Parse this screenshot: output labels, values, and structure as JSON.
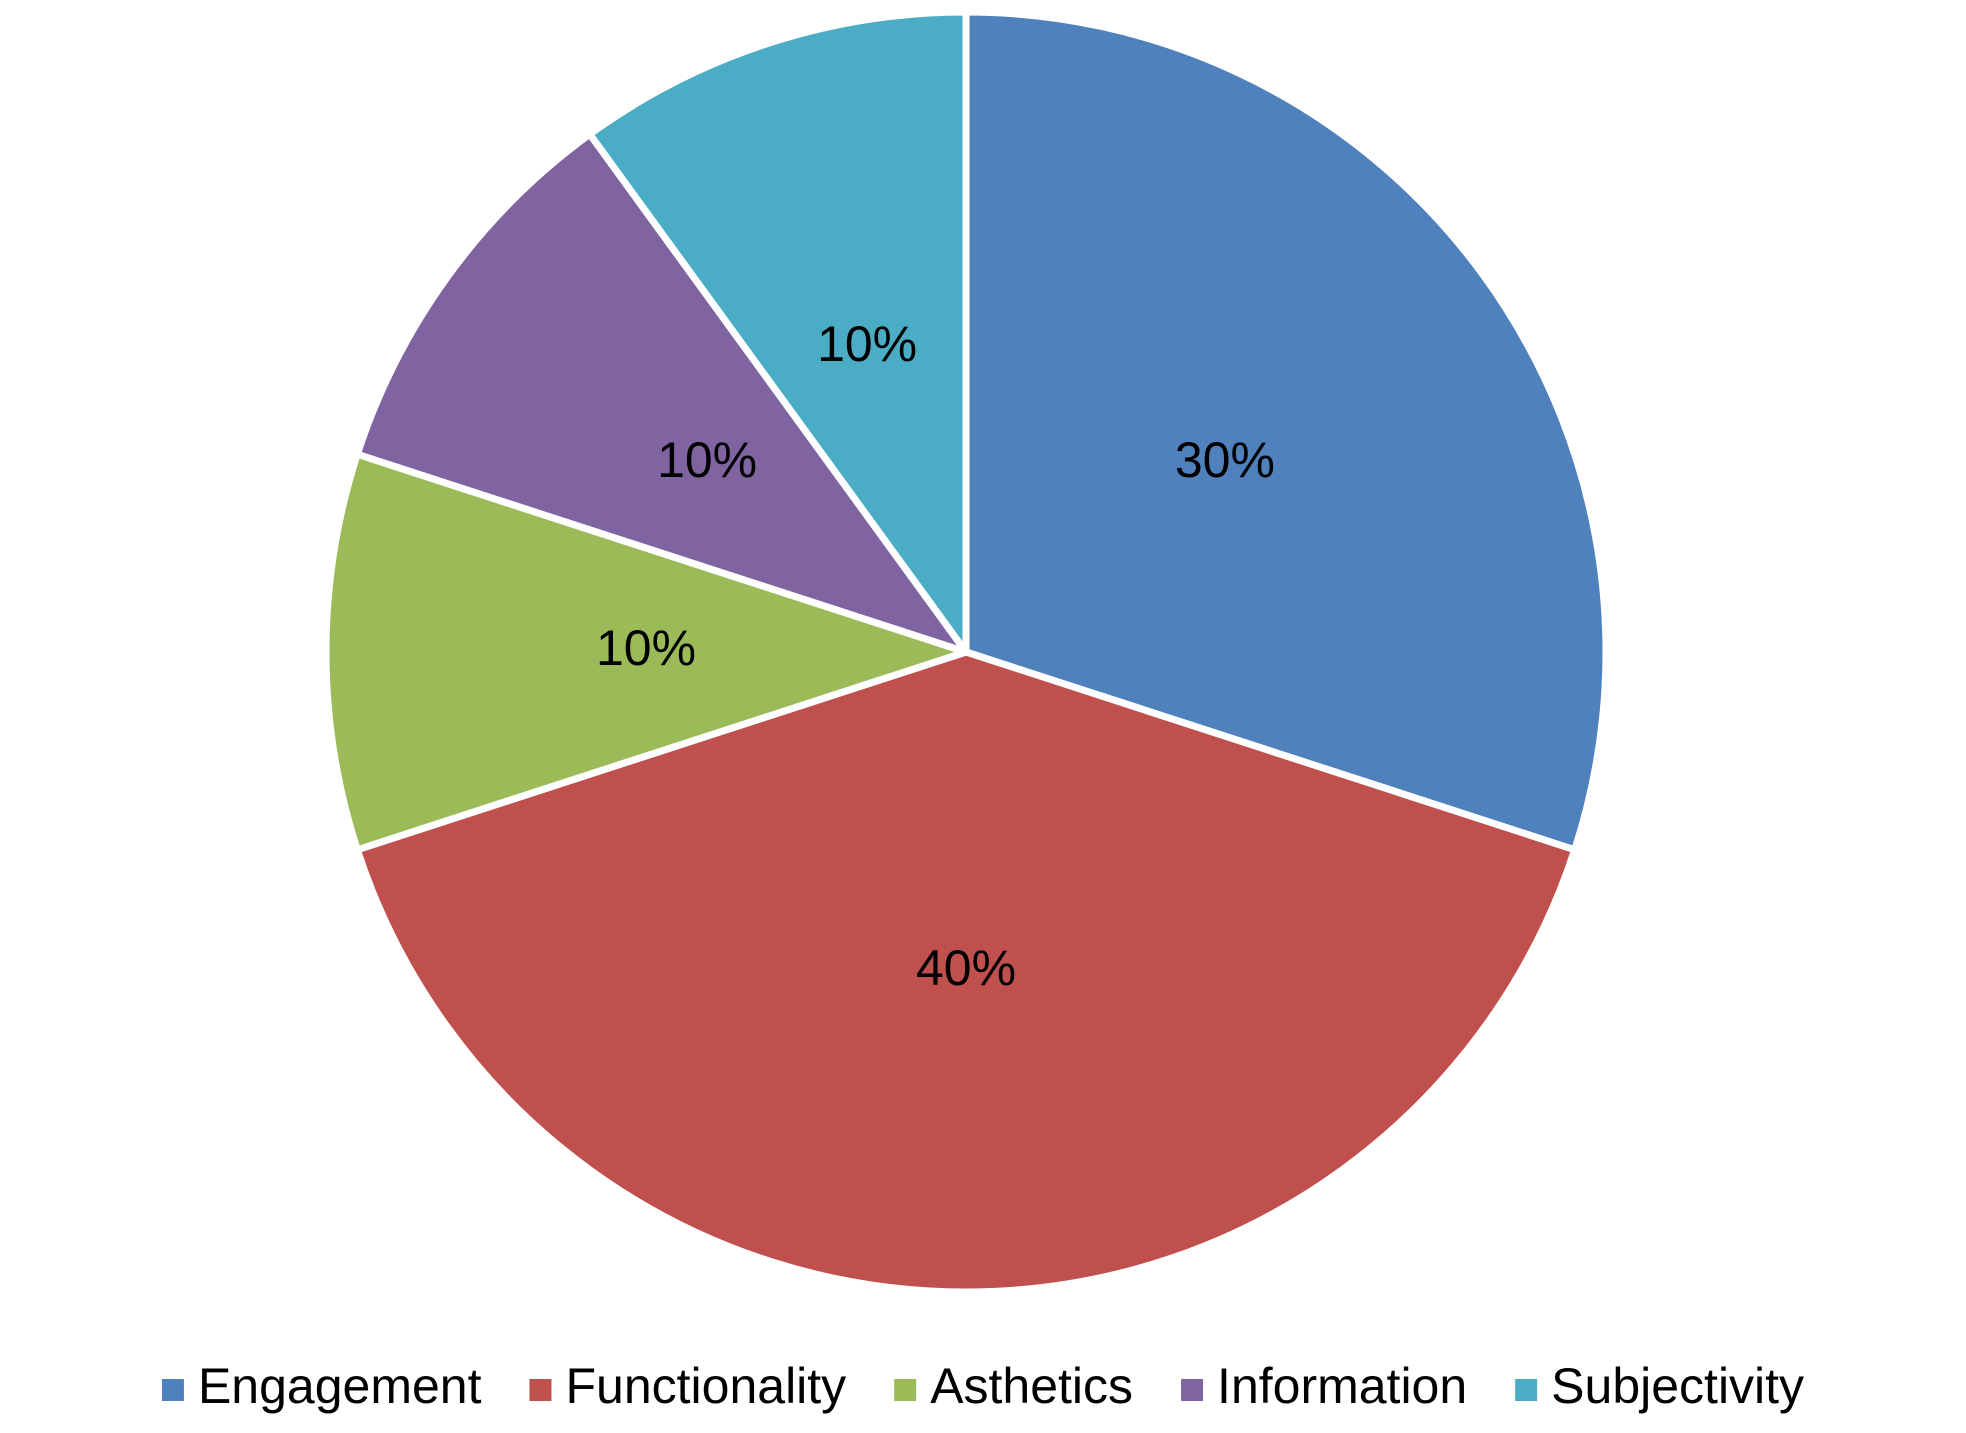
{
  "chart_data": {
    "type": "pie",
    "categories": [
      "Engagement",
      "Functionality",
      "Asthetics",
      "Information",
      "Subjectivity"
    ],
    "values": [
      30,
      40,
      10,
      10,
      10
    ],
    "value_labels": [
      "30%",
      "40%",
      "10%",
      "10%",
      "10%"
    ],
    "colors": [
      "#4f81bd",
      "#c0504d",
      "#9bbb59",
      "#8064a2",
      "#4bacc6"
    ],
    "legend": "bottom"
  }
}
